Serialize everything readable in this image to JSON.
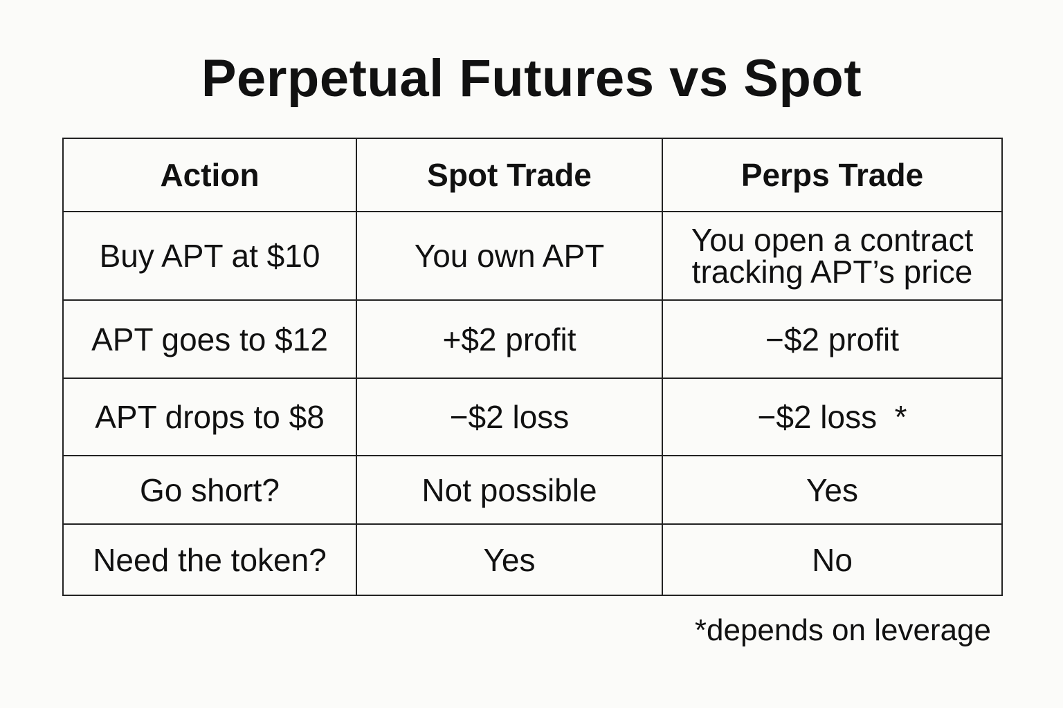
{
  "title": "Perpetual Futures vs Spot",
  "table": {
    "headers": [
      "Action",
      "Spot Trade",
      "Perps Trade"
    ],
    "rows": [
      [
        "Buy APT at $10",
        "You own APT",
        "You open a contract tracking APT’s price"
      ],
      [
        "APT goes to $12",
        "+$2 profit",
        "−$2 profit"
      ],
      [
        "APT drops to $8",
        "−$2 loss",
        "−$2 loss  *"
      ],
      [
        "Go short?",
        "Not possible",
        "Yes"
      ],
      [
        "Need the token?",
        "Yes",
        "No"
      ]
    ]
  },
  "footnote": "*depends on leverage"
}
